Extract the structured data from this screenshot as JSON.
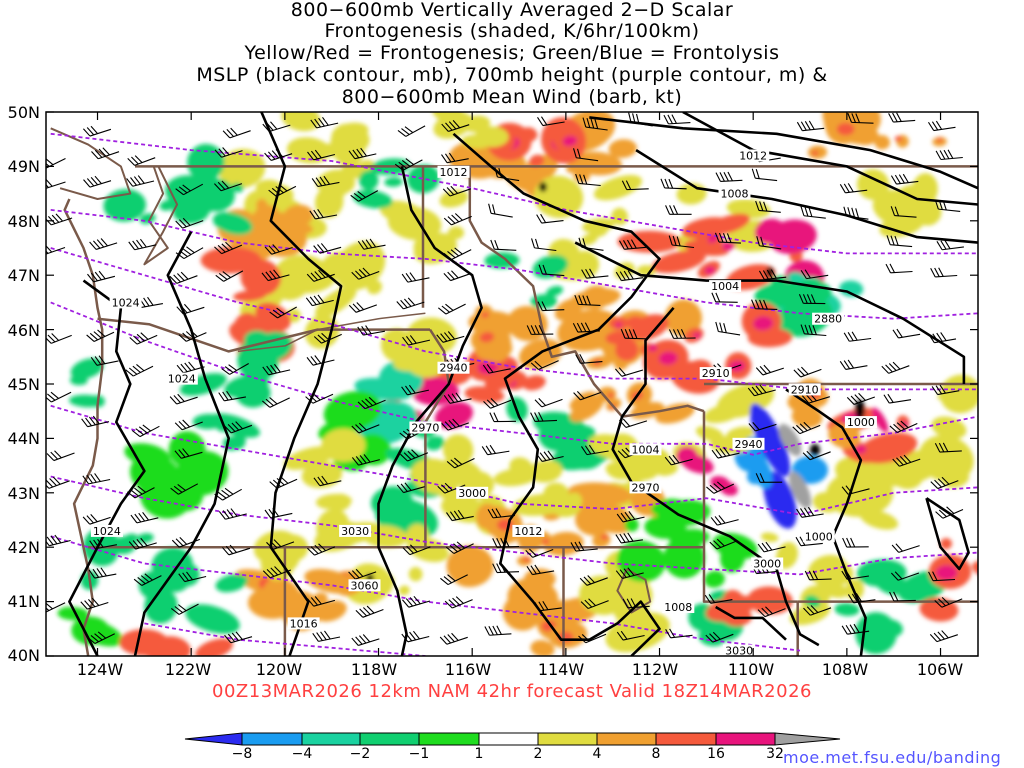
{
  "title_lines": [
    "800−600mb Vertically Averaged 2−D Scalar",
    "Frontogenesis (shaded, K/6hr/100km)",
    "Yellow/Red = Frontogenesis;  Green/Blue = Frontolysis",
    "MSLP (black contour, mb), 700mb height (purple contour, m) &",
    "800−600mb Mean Wind (barb, kt)"
  ],
  "footer": "00Z13MAR2026 12km NAM 42hr forecast Valid 18Z14MAR2026",
  "url": "moe.met.fsu.edu/banding",
  "lat_labels": [
    "50N",
    "49N",
    "48N",
    "47N",
    "46N",
    "45N",
    "44N",
    "43N",
    "42N",
    "41N",
    "40N"
  ],
  "lon_labels": [
    "124W",
    "122W",
    "120W",
    "118W",
    "116W",
    "114W",
    "112W",
    "110W",
    "108W",
    "106W"
  ],
  "colorbar": {
    "labels": [
      "−8",
      "−4",
      "−2",
      "−1",
      "1",
      "2",
      "4",
      "8",
      "16",
      "32"
    ],
    "colors": [
      "#2b2bf0",
      "#1a9cf0",
      "#1ad2a0",
      "#10cf70",
      "#1fdc1f",
      "#ffffff",
      "#e0dc40",
      "#f0a030",
      "#f55a3c",
      "#e8147c",
      "#000000",
      "#a0a0a0"
    ]
  },
  "mslp_labels": [
    {
      "text": "1012",
      "lon": -116.4,
      "lat": 48.9
    },
    {
      "text": "1012",
      "lon": -110.0,
      "lat": 49.2
    },
    {
      "text": "1008",
      "lon": -110.4,
      "lat": 48.5
    },
    {
      "text": "1004",
      "lon": -110.6,
      "lat": 46.8
    },
    {
      "text": "1024",
      "lon": -123.4,
      "lat": 46.5
    },
    {
      "text": "1024",
      "lon": -122.2,
      "lat": 45.1
    },
    {
      "text": "1024",
      "lon": -123.8,
      "lat": 42.3
    },
    {
      "text": "1016",
      "lon": -119.6,
      "lat": 40.6
    },
    {
      "text": "1012",
      "lon": -114.8,
      "lat": 42.3
    },
    {
      "text": "1004",
      "lon": -112.3,
      "lat": 43.8
    },
    {
      "text": "1000",
      "lon": -107.7,
      "lat": 44.3
    },
    {
      "text": "1000",
      "lon": -108.6,
      "lat": 42.2
    },
    {
      "text": "1008",
      "lon": -111.6,
      "lat": 40.9
    }
  ],
  "height_labels": [
    {
      "text": "2880",
      "lon": -108.4,
      "lat": 46.2
    },
    {
      "text": "2910",
      "lon": -110.8,
      "lat": 45.2
    },
    {
      "text": "2910",
      "lon": -108.9,
      "lat": 44.9
    },
    {
      "text": "2940",
      "lon": -116.4,
      "lat": 45.3
    },
    {
      "text": "2940",
      "lon": -110.1,
      "lat": 43.9
    },
    {
      "text": "2970",
      "lon": -117.0,
      "lat": 44.2
    },
    {
      "text": "2970",
      "lon": -112.3,
      "lat": 43.1
    },
    {
      "text": "3000",
      "lon": -116.0,
      "lat": 43.0
    },
    {
      "text": "3000",
      "lon": -109.7,
      "lat": 41.7
    },
    {
      "text": "3030",
      "lon": -118.5,
      "lat": 42.3
    },
    {
      "text": "3060",
      "lon": -118.3,
      "lat": 41.3
    },
    {
      "text": "3030",
      "lon": -110.3,
      "lat": 40.1
    }
  ]
}
